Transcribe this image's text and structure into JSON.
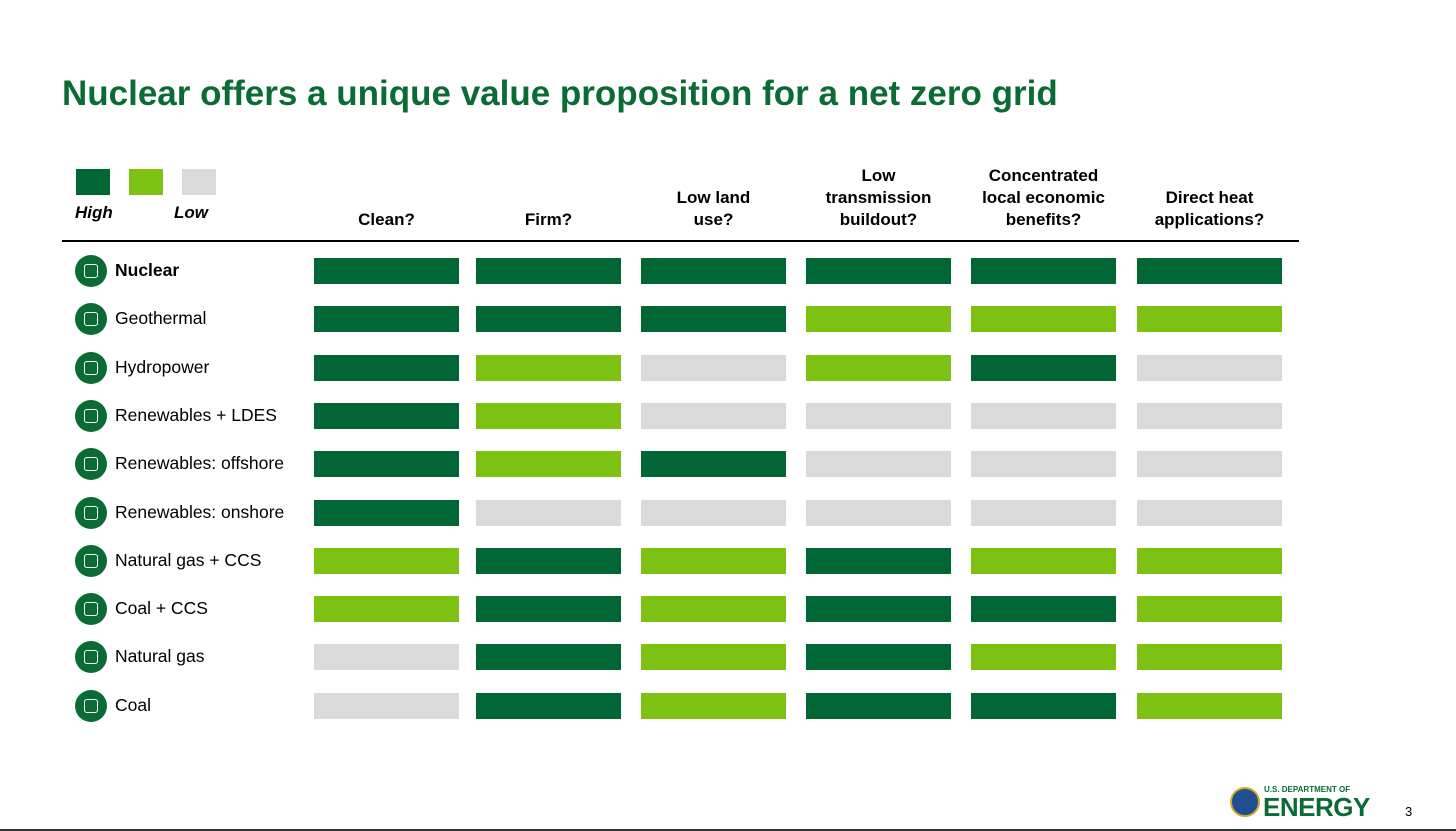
{
  "header": {
    "title": "Nuclear offers a unique value proposition for a net zero grid"
  },
  "legend": {
    "colors": [
      "#006633",
      "#7dc113",
      "#dadada"
    ],
    "high": "High",
    "low": "Low"
  },
  "table": {
    "columns": [
      [
        "Clean?"
      ],
      [
        "Firm?"
      ],
      [
        "Low land",
        "use?"
      ],
      [
        "Low",
        "transmission",
        "buildout?"
      ],
      [
        "Concentrated",
        "local economic",
        "benefits?"
      ],
      [
        "Direct heat",
        "applications?"
      ]
    ],
    "rows": [
      {
        "label": "Nuclear",
        "cells": [
          "#006633",
          "#006633",
          "#006633",
          "#006633",
          "#006633",
          "#006633"
        ]
      },
      {
        "label": "Geothermal",
        "cells": [
          "#006633",
          "#006633",
          "#006633",
          "#7dc113",
          "#7dc113",
          "#7dc113"
        ]
      },
      {
        "label": "Hydropower",
        "cells": [
          "#006633",
          "#7dc113",
          "#dadada",
          "#7dc113",
          "#006633",
          "#dadada"
        ]
      },
      {
        "label": "Renewables + LDES",
        "cells": [
          "#006633",
          "#7dc113",
          "#dadada",
          "#dadada",
          "#dadada",
          "#dadada"
        ]
      },
      {
        "label": "Renewables: offshore",
        "cells": [
          "#006633",
          "#7dc113",
          "#006633",
          "#dadada",
          "#dadada",
          "#dadada"
        ]
      },
      {
        "label": "Renewables: onshore",
        "cells": [
          "#006633",
          "#dadada",
          "#dadada",
          "#dadada",
          "#dadada",
          "#dadada"
        ]
      },
      {
        "label": "Natural gas + CCS",
        "cells": [
          "#7dc113",
          "#006633",
          "#7dc113",
          "#006633",
          "#7dc113",
          "#7dc113"
        ]
      },
      {
        "label": "Coal + CCS",
        "cells": [
          "#7dc113",
          "#006633",
          "#7dc113",
          "#006633",
          "#006633",
          "#7dc113"
        ]
      },
      {
        "label": "Natural gas",
        "cells": [
          "#dadada",
          "#006633",
          "#7dc113",
          "#006633",
          "#7dc113",
          "#7dc113"
        ]
      },
      {
        "label": "Coal",
        "cells": [
          "#dadada",
          "#006633",
          "#7dc113",
          "#006633",
          "#006633",
          "#7dc113"
        ]
      }
    ]
  },
  "footer": {
    "department": "U.S. DEPARTMENT OF",
    "agency": "ENERGY",
    "page": "3"
  }
}
